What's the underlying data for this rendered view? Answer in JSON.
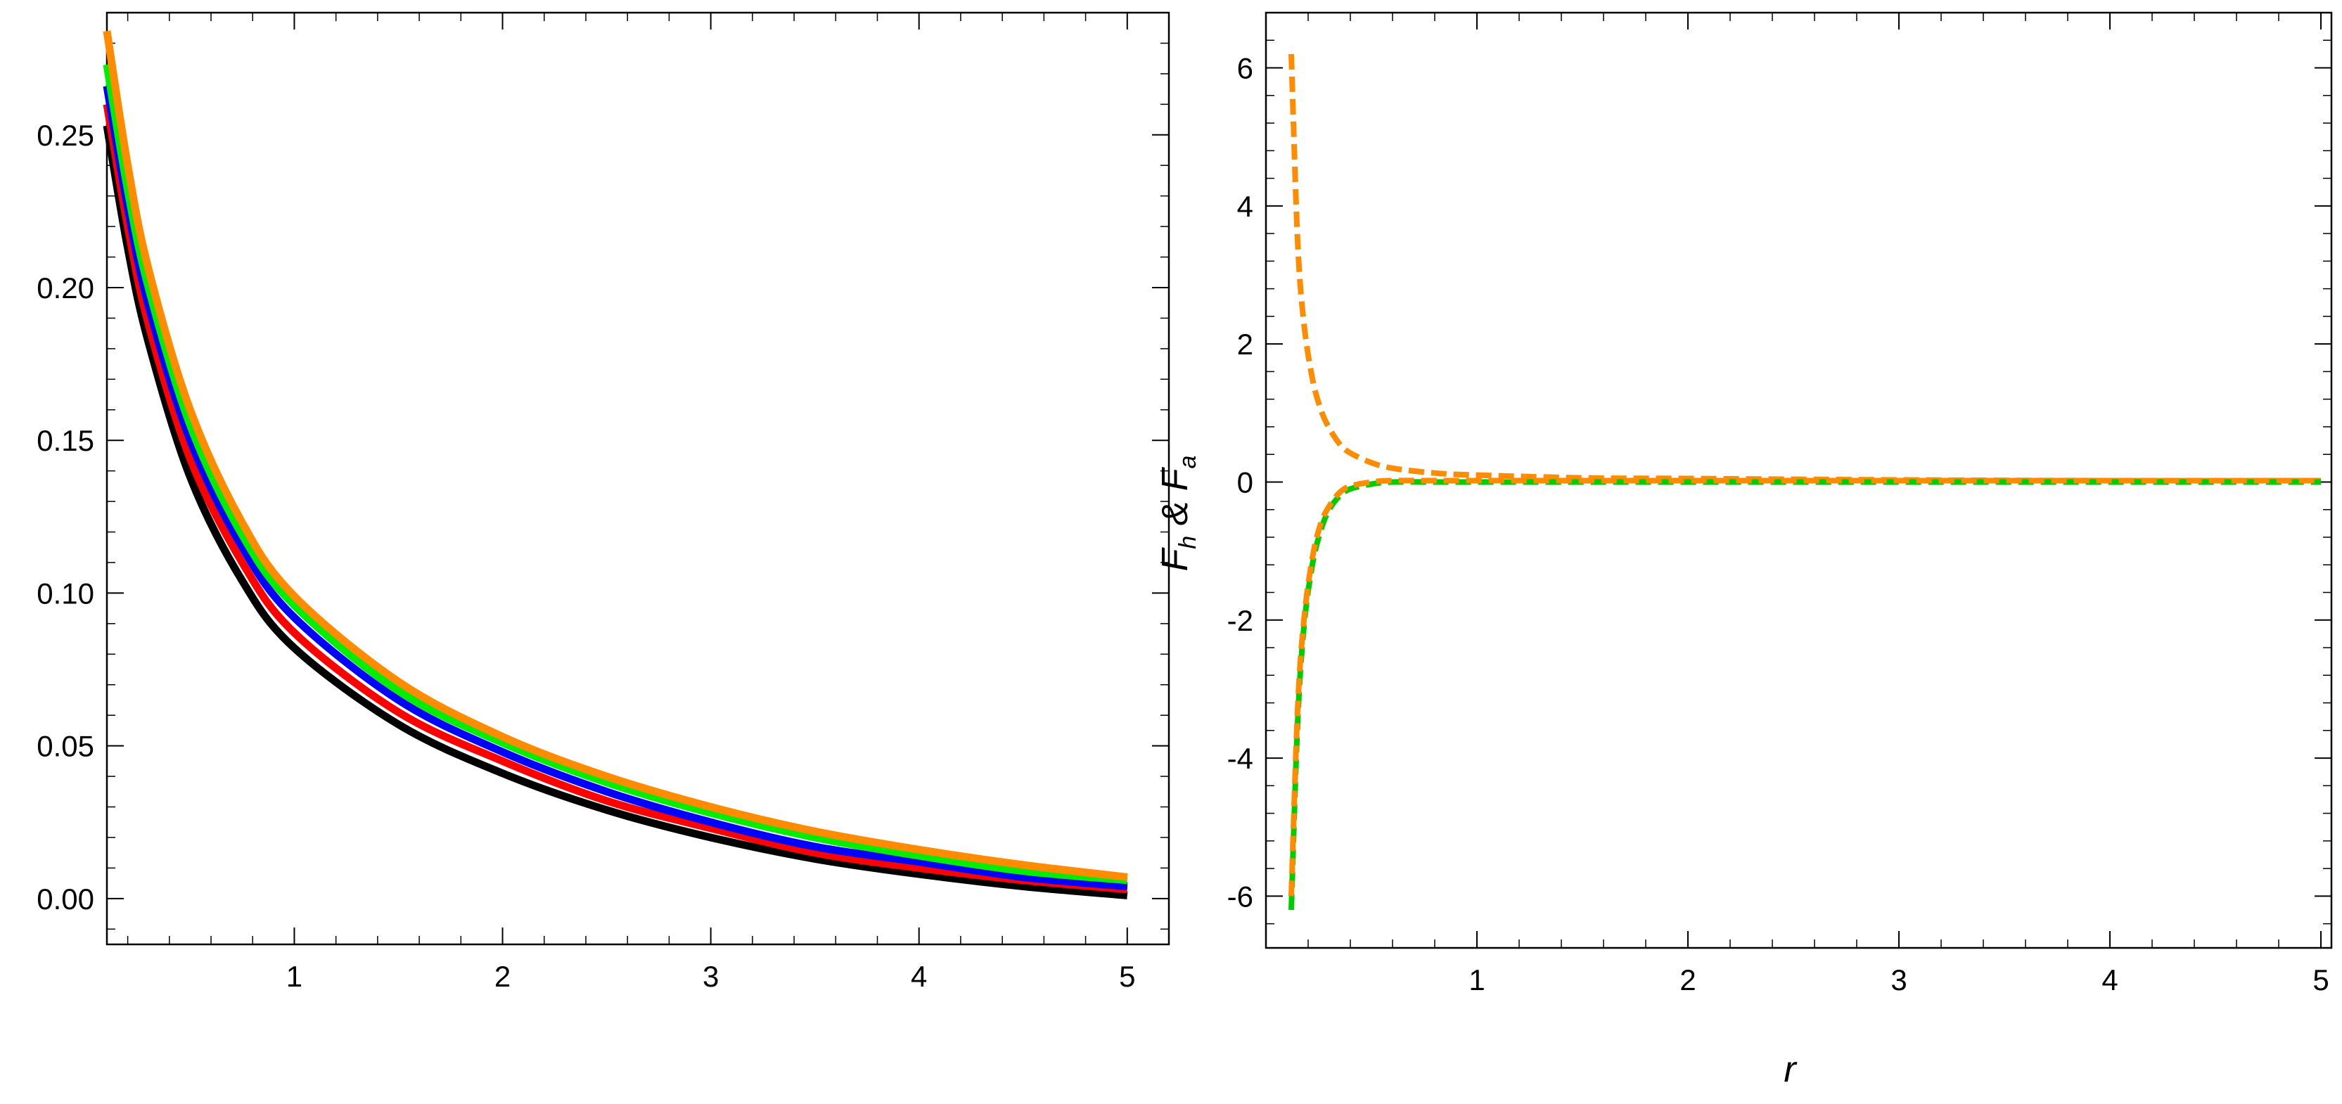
{
  "chart_data": [
    {
      "type": "line",
      "title": "",
      "xlabel": "",
      "ylabel": "",
      "xlim": [
        0.1,
        5.2
      ],
      "ylim": [
        -0.015,
        0.29
      ],
      "xticks": [
        1,
        2,
        3,
        4,
        5
      ],
      "xtick_labels": [
        "1",
        "2",
        "3",
        "4",
        "5"
      ],
      "yticks": [
        0,
        0.05,
        0.1,
        0.15,
        0.2,
        0.25
      ],
      "ytick_labels": [
        "0.00",
        "0.05",
        "0.10",
        "0.15",
        "0.20",
        "0.25"
      ],
      "grid": false,
      "legend": "none",
      "x": [
        0.1,
        0.2,
        0.3,
        0.5,
        0.75,
        1,
        1.5,
        2,
        2.5,
        3,
        3.5,
        4,
        4.5,
        5
      ],
      "series": [
        {
          "color": "#000000",
          "values": [
            0.253,
            0.213,
            0.182,
            0.138,
            0.104,
            0.082,
            0.057,
            0.041,
            0.029,
            0.02,
            0.013,
            0.008,
            0.004,
            0.001
          ]
        },
        {
          "color": "#ff0000",
          "values": [
            0.26,
            0.22,
            0.188,
            0.144,
            0.11,
            0.087,
            0.061,
            0.045,
            0.032,
            0.023,
            0.015,
            0.01,
            0.006,
            0.003
          ]
        },
        {
          "color": "#0000ff",
          "values": [
            0.266,
            0.226,
            0.194,
            0.15,
            0.115,
            0.092,
            0.065,
            0.048,
            0.035,
            0.025,
            0.017,
            0.012,
            0.007,
            0.004
          ]
        },
        {
          "color": "#00ee00",
          "values": [
            0.273,
            0.232,
            0.2,
            0.155,
            0.119,
            0.096,
            0.068,
            0.051,
            0.038,
            0.028,
            0.02,
            0.014,
            0.009,
            0.006
          ]
        },
        {
          "color": "#ff8c00",
          "values": [
            0.284,
            0.24,
            0.206,
            0.16,
            0.123,
            0.099,
            0.071,
            0.053,
            0.04,
            0.03,
            0.022,
            0.016,
            0.011,
            0.007
          ]
        }
      ]
    },
    {
      "type": "line",
      "title": "",
      "xlabel": "r",
      "ylabel": "F_h & F_a",
      "xlabel_display": "r",
      "ylabel_display": {
        "F1": "F",
        "sub1": "h",
        "amp": " & ",
        "F2": "F",
        "sub2": "a"
      },
      "xlim": [
        0.0,
        5.05
      ],
      "ylim": [
        -6.75,
        6.8
      ],
      "xticks": [
        1,
        2,
        3,
        4,
        5
      ],
      "xtick_labels": [
        "1",
        "2",
        "3",
        "4",
        "5"
      ],
      "yticks": [
        -6,
        -4,
        -2,
        0,
        2,
        4,
        6
      ],
      "ytick_labels": [
        "-6",
        "-4",
        "-2",
        "0",
        "2",
        "4",
        "6"
      ],
      "grid": false,
      "legend": "none",
      "x": [
        0.12,
        0.15,
        0.18,
        0.22,
        0.26,
        0.3,
        0.35,
        0.4,
        0.5,
        0.6,
        0.8,
        1,
        1.5,
        2,
        3,
        4,
        5
      ],
      "series": [
        {
          "color": "#ff8c00",
          "style": "dashed",
          "values": [
            6.2,
            3.5,
            2.3,
            1.5,
            1.05,
            0.78,
            0.55,
            0.42,
            0.28,
            0.2,
            0.13,
            0.1,
            0.06,
            0.05,
            0.03,
            0.02,
            0.02
          ]
        },
        {
          "color": "#00cc00",
          "style": "dashed",
          "values": [
            -6.2,
            -3.5,
            -2.1,
            -1.2,
            -0.7,
            -0.4,
            -0.2,
            -0.1,
            -0.03,
            0.0,
            0.0,
            0.0,
            0.0,
            0.0,
            0.0,
            0.0,
            0.0
          ]
        },
        {
          "color": "#ff8c00",
          "style": "dashed",
          "values": [
            -6.0,
            -3.3,
            -2.0,
            -1.1,
            -0.6,
            -0.35,
            -0.15,
            -0.06,
            0.0,
            0.02,
            0.02,
            0.02,
            0.02,
            0.02,
            0.02,
            0.02,
            0.02
          ]
        }
      ]
    }
  ]
}
